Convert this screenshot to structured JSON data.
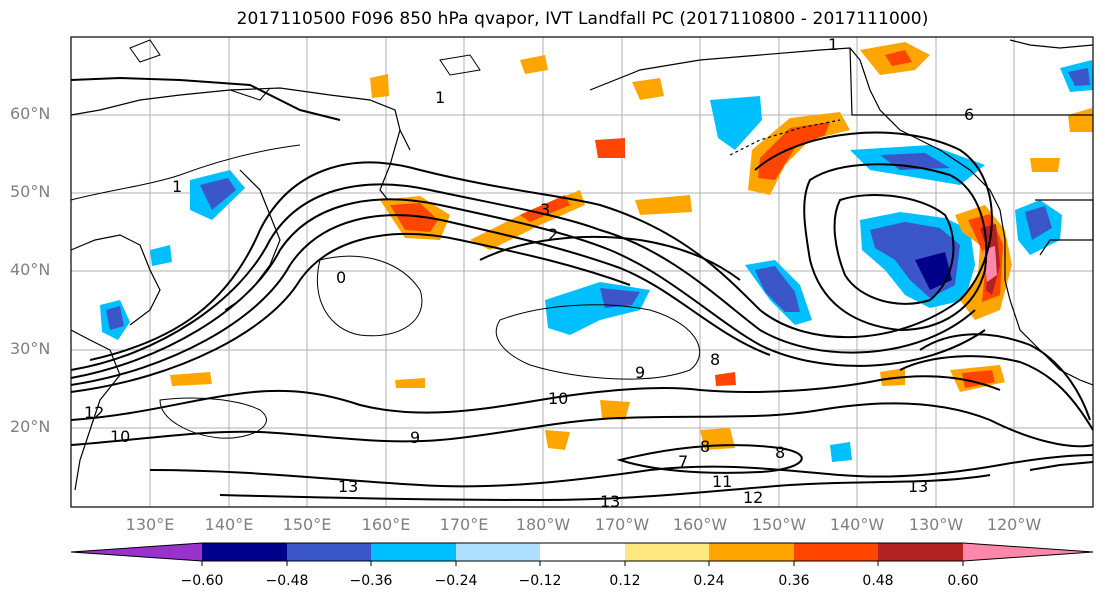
{
  "title": "2017110500 F096 850 hPa qvapor, IVT Landfall PC (2017110800 - 2017111000)",
  "latitude_labels": [
    "60°N",
    "50°N",
    "40°N",
    "30°N",
    "20°N"
  ],
  "longitude_labels": [
    "130°E",
    "140°E",
    "150°E",
    "160°E",
    "170°E",
    "180°W",
    "170°W",
    "160°W",
    "150°W",
    "140°W",
    "130°W",
    "120°W"
  ],
  "contour_labels": [
    "1",
    "3",
    "2",
    "1",
    "8",
    "9",
    "10",
    "9",
    "7",
    "8",
    "8",
    "11",
    "12",
    "13",
    "13",
    "12",
    "10",
    "0",
    "1",
    "6",
    "13"
  ],
  "colorbar": {
    "tick_labels": [
      "−0.60",
      "−0.48",
      "−0.36",
      "−0.24",
      "−0.12",
      "0.12",
      "0.24",
      "0.36",
      "0.48",
      "0.60"
    ],
    "colors": [
      "#9932cc",
      "#00008b",
      "#3a56c9",
      "#00bfff",
      "#b0e0ff",
      "#ffffff",
      "#ffe880",
      "#ffa500",
      "#ff4500",
      "#b22222",
      "#ff88aa"
    ]
  },
  "fill_colors": {
    "neg_light": "#00bfff",
    "neg_mid": "#3a56c9",
    "neg_dark": "#00008b",
    "pos_light": "#ffa500",
    "pos_mid": "#ff4500",
    "pos_dark": "#b22222",
    "pos_max": "#ff88aa"
  }
}
